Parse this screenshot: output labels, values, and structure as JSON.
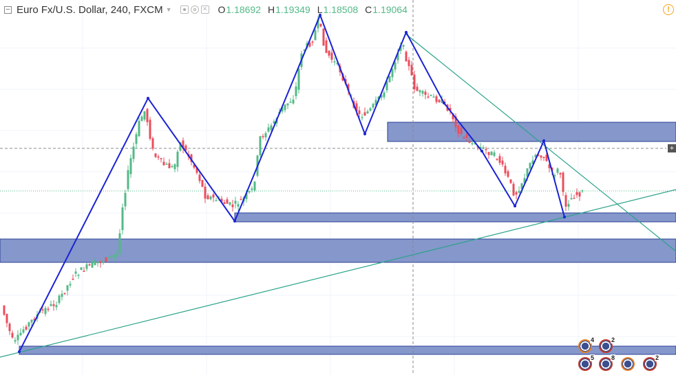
{
  "legend": {
    "symbol_title": "Euro Fx/U.S. Dollar, 240, FXCM",
    "collapse_glyph": "−",
    "open_key": "O",
    "open": "1.18692",
    "high_key": "H",
    "high": "1.19349",
    "low_key": "L",
    "low": "1.18508",
    "close_key": "C",
    "close": "1.19064"
  },
  "colors": {
    "up_candle": "#53b987",
    "down_candle": "#eb4d5c",
    "zone_fill": "#8597cb",
    "zone_border": "#2a3f96",
    "zigzag": "#1a22d4",
    "trendline": "#2aa389",
    "price_line": "#53b987",
    "crosshair": "#888888"
  },
  "alert": {
    "glyph": "!"
  },
  "price_label": {
    "glyph": "+"
  },
  "events": [
    {
      "type": "eu",
      "count": "4"
    },
    {
      "type": "us",
      "count": "2"
    },
    {
      "type": "us",
      "count": "5"
    },
    {
      "type": "us",
      "count": "8"
    },
    {
      "type": "eu",
      "count": ""
    },
    {
      "type": "us",
      "count": "2"
    }
  ],
  "chart_data": {
    "type": "candlestick",
    "title": "Euro Fx/U.S. Dollar, 240, FXCM",
    "last_bar": {
      "open": 1.18692,
      "high": 1.19349,
      "low": 1.18508,
      "close": 1.19064
    },
    "annotations": [
      {
        "kind": "zigzag-pattern",
        "pivots": 12
      },
      {
        "kind": "support-resistance-zones",
        "count": 5
      },
      {
        "kind": "trendlines",
        "count": 2
      }
    ]
  }
}
